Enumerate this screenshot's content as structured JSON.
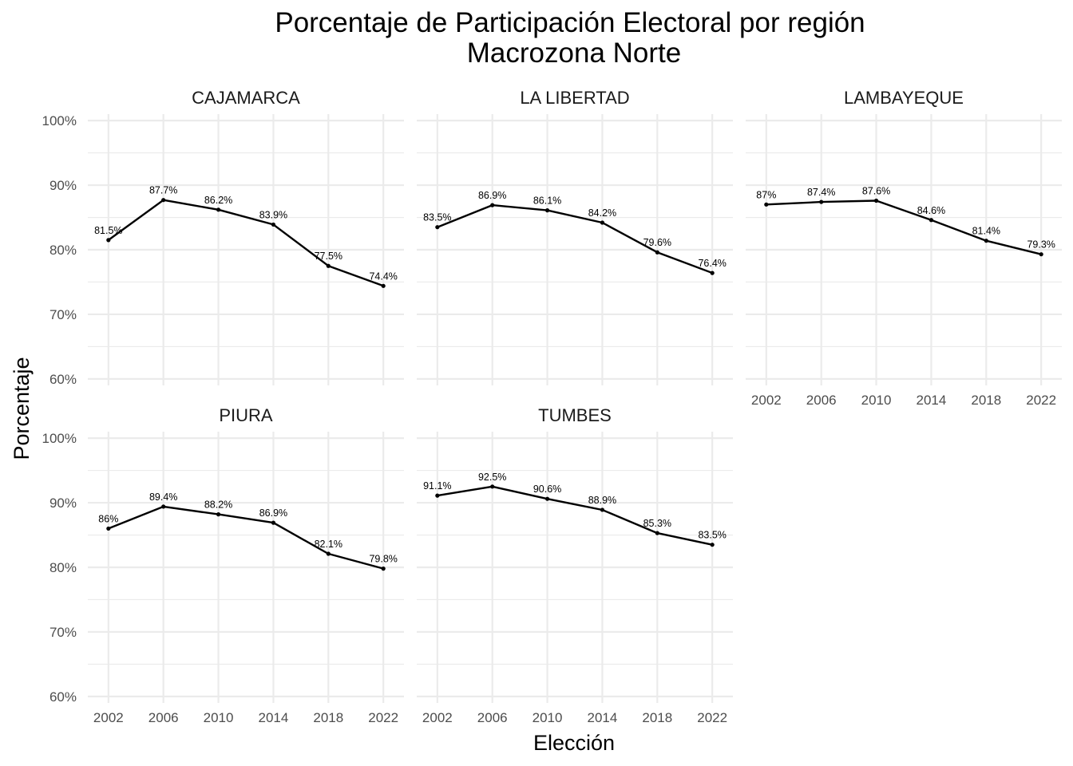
{
  "chart_data": {
    "type": "line",
    "title": "Porcentaje de Participación Electoral por región",
    "subtitle": "Macrozona Norte",
    "xlabel": "Elección",
    "ylabel": "Porcentaje",
    "x": [
      2002,
      2006,
      2010,
      2014,
      2018,
      2022
    ],
    "x_tick_labels": [
      "2002",
      "2006",
      "2010",
      "2014",
      "2018",
      "2022"
    ],
    "ylim": [
      59,
      101
    ],
    "y_ticks": [
      60,
      70,
      80,
      90,
      100
    ],
    "y_tick_labels": [
      "60%",
      "70%",
      "80%",
      "90%",
      "100%"
    ],
    "grid": true,
    "line_color": "#000000",
    "grid_color": "#ebebeb",
    "facets": [
      {
        "name": "CAJAMARCA",
        "values": [
          81.5,
          87.7,
          86.2,
          83.9,
          77.5,
          74.4
        ],
        "labels": [
          "81.5%",
          "87.7%",
          "86.2%",
          "83.9%",
          "77.5%",
          "74.4%"
        ]
      },
      {
        "name": "LA LIBERTAD",
        "values": [
          83.5,
          86.9,
          86.1,
          84.2,
          79.6,
          76.4
        ],
        "labels": [
          "83.5%",
          "86.9%",
          "86.1%",
          "84.2%",
          "79.6%",
          "76.4%"
        ]
      },
      {
        "name": "LAMBAYEQUE",
        "values": [
          87.0,
          87.4,
          87.6,
          84.6,
          81.4,
          79.3
        ],
        "labels": [
          "87%",
          "87.4%",
          "87.6%",
          "84.6%",
          "81.4%",
          "79.3%"
        ]
      },
      {
        "name": "PIURA",
        "values": [
          86.0,
          89.4,
          88.2,
          86.9,
          82.1,
          79.8
        ],
        "labels": [
          "86%",
          "89.4%",
          "88.2%",
          "86.9%",
          "82.1%",
          "79.8%"
        ]
      },
      {
        "name": "TUMBES",
        "values": [
          91.1,
          92.5,
          90.6,
          88.9,
          85.3,
          83.5
        ],
        "labels": [
          "91.1%",
          "92.5%",
          "90.6%",
          "88.9%",
          "85.3%",
          "83.5%"
        ]
      }
    ]
  }
}
